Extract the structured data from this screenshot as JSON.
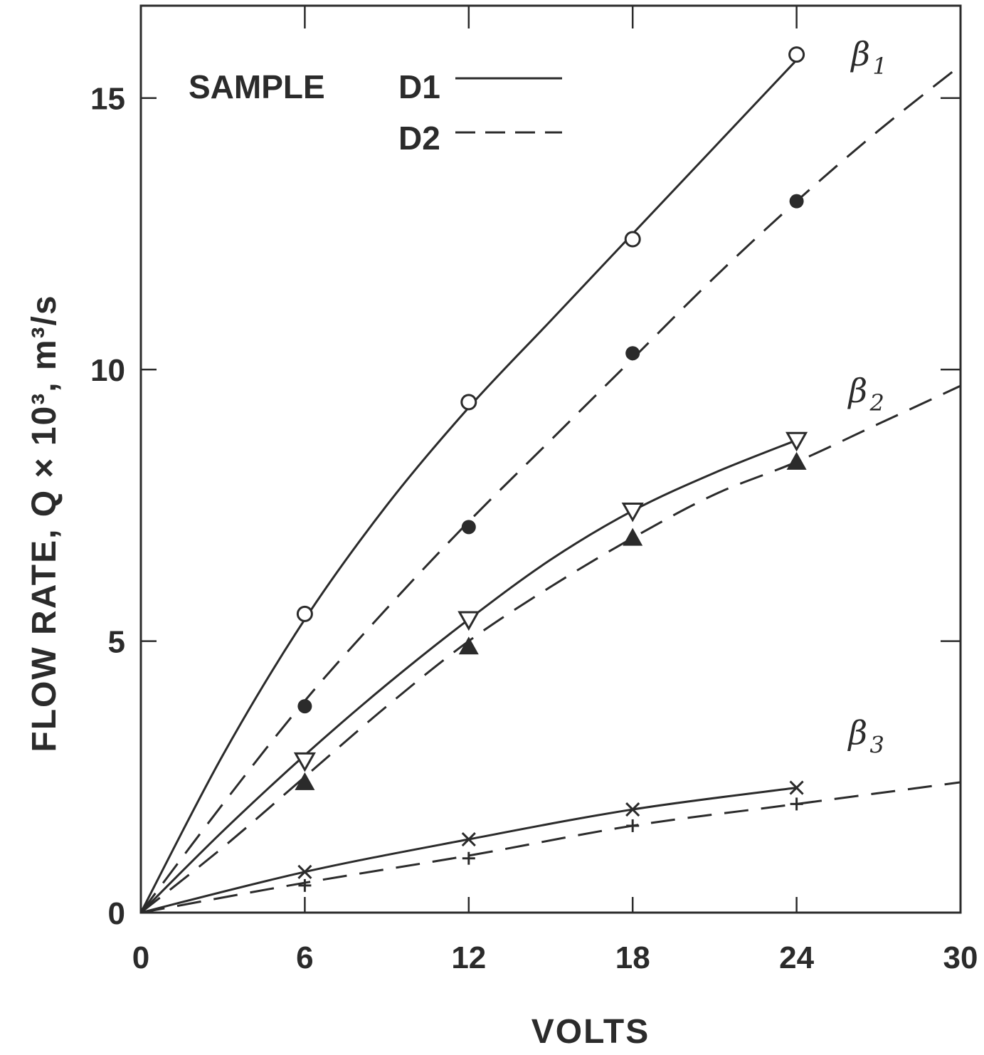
{
  "chart_data": {
    "type": "line",
    "xlabel": "VOLTS",
    "ylabel": "FLOW RATE, Q × 10³, m³/s",
    "xlim": [
      0,
      30
    ],
    "ylim": [
      0,
      16.7
    ],
    "x_ticks": [
      "0",
      "6",
      "12",
      "18",
      "24",
      "30"
    ],
    "y_ticks": [
      "0",
      "5",
      "10",
      "15"
    ],
    "legend": {
      "title": "SAMPLE",
      "entries": [
        {
          "label": "D1",
          "style": "solid"
        },
        {
          "label": "D2",
          "style": "dashed"
        }
      ],
      "placement": "top-left"
    },
    "series": [
      {
        "name": "β1",
        "sample": "D1",
        "style": "solid",
        "marker": "open-circle",
        "x": [
          0,
          6,
          12,
          18,
          24
        ],
        "y": [
          0,
          5.5,
          9.4,
          12.4,
          15.8
        ],
        "curve": [
          [
            0,
            0
          ],
          [
            3,
            2.9
          ],
          [
            6,
            5.4
          ],
          [
            9,
            7.5
          ],
          [
            12,
            9.3
          ],
          [
            15,
            10.9
          ],
          [
            18,
            12.5
          ],
          [
            21,
            14.1
          ],
          [
            24,
            15.7
          ]
        ]
      },
      {
        "name": "",
        "sample": "D2",
        "style": "dashed",
        "marker": "filled-circle",
        "x": [
          0,
          6,
          12,
          18,
          24
        ],
        "y": [
          0,
          3.8,
          7.1,
          10.3,
          13.1
        ],
        "curve": [
          [
            0,
            0
          ],
          [
            3,
            2.0
          ],
          [
            6,
            3.9
          ],
          [
            9,
            5.6
          ],
          [
            12,
            7.2
          ],
          [
            15,
            8.7
          ],
          [
            18,
            10.2
          ],
          [
            21,
            11.7
          ],
          [
            24,
            13.1
          ],
          [
            27,
            14.4
          ],
          [
            30,
            15.6
          ]
        ]
      },
      {
        "name": "β2",
        "sample": "D1",
        "style": "solid",
        "marker": "open-triangle-down",
        "x": [
          0,
          6,
          12,
          18,
          24
        ],
        "y": [
          0,
          2.8,
          5.4,
          7.4,
          8.7
        ],
        "curve": [
          [
            0,
            0
          ],
          [
            3,
            1.5
          ],
          [
            6,
            2.9
          ],
          [
            9,
            4.2
          ],
          [
            12,
            5.4
          ],
          [
            15,
            6.5
          ],
          [
            18,
            7.4
          ],
          [
            21,
            8.1
          ],
          [
            24,
            8.7
          ]
        ]
      },
      {
        "name": "",
        "sample": "D2",
        "style": "dashed",
        "marker": "filled-triangle-up",
        "x": [
          0,
          6,
          12,
          18,
          24
        ],
        "y": [
          0,
          2.4,
          4.9,
          6.9,
          8.3
        ],
        "curve": [
          [
            0,
            0
          ],
          [
            3,
            1.2
          ],
          [
            6,
            2.5
          ],
          [
            9,
            3.8
          ],
          [
            12,
            5.0
          ],
          [
            15,
            6.0
          ],
          [
            18,
            6.9
          ],
          [
            21,
            7.7
          ],
          [
            24,
            8.3
          ],
          [
            27,
            9.0
          ],
          [
            30,
            9.7
          ]
        ]
      },
      {
        "name": "β3",
        "sample": "D1",
        "style": "solid",
        "marker": "x",
        "x": [
          0,
          6,
          12,
          18,
          24
        ],
        "y": [
          0,
          0.75,
          1.35,
          1.9,
          2.3
        ],
        "curve": [
          [
            0,
            0
          ],
          [
            6,
            0.75
          ],
          [
            12,
            1.35
          ],
          [
            18,
            1.9
          ],
          [
            24,
            2.3
          ]
        ]
      },
      {
        "name": "",
        "sample": "D2",
        "style": "dashed",
        "marker": "plus",
        "x": [
          0,
          6,
          12,
          18,
          24
        ],
        "y": [
          0,
          0.5,
          1.0,
          1.6,
          2.0
        ],
        "curve": [
          [
            0,
            0
          ],
          [
            6,
            0.55
          ],
          [
            12,
            1.05
          ],
          [
            18,
            1.6
          ],
          [
            24,
            2.0
          ],
          [
            30,
            2.4
          ]
        ]
      }
    ],
    "series_labels": [
      {
        "text": "β",
        "sub": "1",
        "at": [
          26,
          15.6
        ]
      },
      {
        "text": "β",
        "sub": "2",
        "at": [
          25.9,
          9.4
        ]
      },
      {
        "text": "β",
        "sub": "3",
        "at": [
          25.9,
          3.1
        ]
      }
    ],
    "grid": false
  }
}
